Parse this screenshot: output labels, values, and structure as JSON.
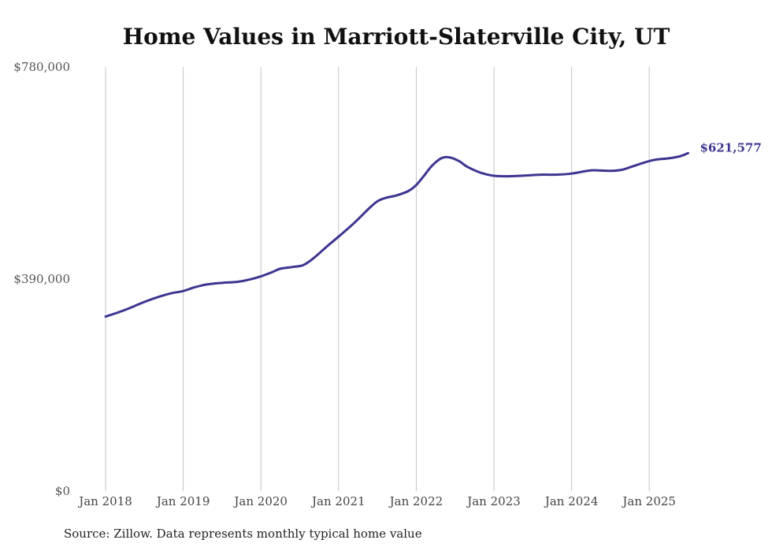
{
  "chart_data": {
    "type": "line",
    "title": "Home Values in Marriott-Slaterville City, UT",
    "xlabel": "",
    "ylabel": "",
    "ylim": [
      0,
      780000
    ],
    "y_ticks": [
      "$0",
      "$390,000",
      "$780,000"
    ],
    "y_tick_values": [
      0,
      390000,
      780000
    ],
    "x_ticks": [
      "Jan 2018",
      "Jan 2019",
      "Jan 2020",
      "Jan 2021",
      "Jan 2022",
      "Jan 2023",
      "Jan 2024",
      "Jan 2025"
    ],
    "x_tick_values": [
      2018.0,
      2019.0,
      2020.0,
      2021.0,
      2022.0,
      2023.0,
      2024.0,
      2025.0
    ],
    "xlim": [
      2018.0,
      2025.5
    ],
    "grid": "vertical",
    "series": [
      {
        "color": "#3d3590",
        "end_label": "$621,577",
        "points": [
          [
            2018.0,
            321000
          ],
          [
            2018.15,
            328000
          ],
          [
            2018.3,
            336000
          ],
          [
            2018.5,
            348000
          ],
          [
            2018.7,
            358000
          ],
          [
            2018.85,
            364000
          ],
          [
            2019.0,
            368000
          ],
          [
            2019.15,
            375000
          ],
          [
            2019.3,
            380000
          ],
          [
            2019.5,
            383000
          ],
          [
            2019.7,
            385000
          ],
          [
            2019.85,
            389000
          ],
          [
            2020.0,
            395000
          ],
          [
            2020.15,
            403000
          ],
          [
            2020.25,
            409000
          ],
          [
            2020.4,
            412000
          ],
          [
            2020.55,
            416000
          ],
          [
            2020.7,
            431000
          ],
          [
            2020.85,
            450000
          ],
          [
            2021.0,
            468000
          ],
          [
            2021.2,
            493000
          ],
          [
            2021.4,
            521000
          ],
          [
            2021.5,
            533000
          ],
          [
            2021.6,
            539000
          ],
          [
            2021.75,
            544000
          ],
          [
            2021.9,
            552000
          ],
          [
            2022.0,
            563000
          ],
          [
            2022.1,
            580000
          ],
          [
            2022.2,
            598000
          ],
          [
            2022.32,
            612000
          ],
          [
            2022.42,
            614000
          ],
          [
            2022.55,
            607000
          ],
          [
            2022.65,
            597000
          ],
          [
            2022.8,
            587000
          ],
          [
            2022.92,
            582000
          ],
          [
            2023.0,
            580000
          ],
          [
            2023.15,
            579000
          ],
          [
            2023.35,
            580000
          ],
          [
            2023.6,
            582000
          ],
          [
            2023.8,
            582000
          ],
          [
            2024.0,
            584000
          ],
          [
            2024.2,
            589000
          ],
          [
            2024.3,
            590000
          ],
          [
            2024.5,
            589000
          ],
          [
            2024.65,
            591000
          ],
          [
            2024.8,
            598000
          ],
          [
            2025.0,
            607000
          ],
          [
            2025.1,
            610000
          ],
          [
            2025.25,
            612000
          ],
          [
            2025.4,
            616000
          ],
          [
            2025.5,
            621577
          ]
        ]
      }
    ]
  },
  "footer": {
    "source": "Source: Zillow. Data represents monthly typical home value"
  }
}
